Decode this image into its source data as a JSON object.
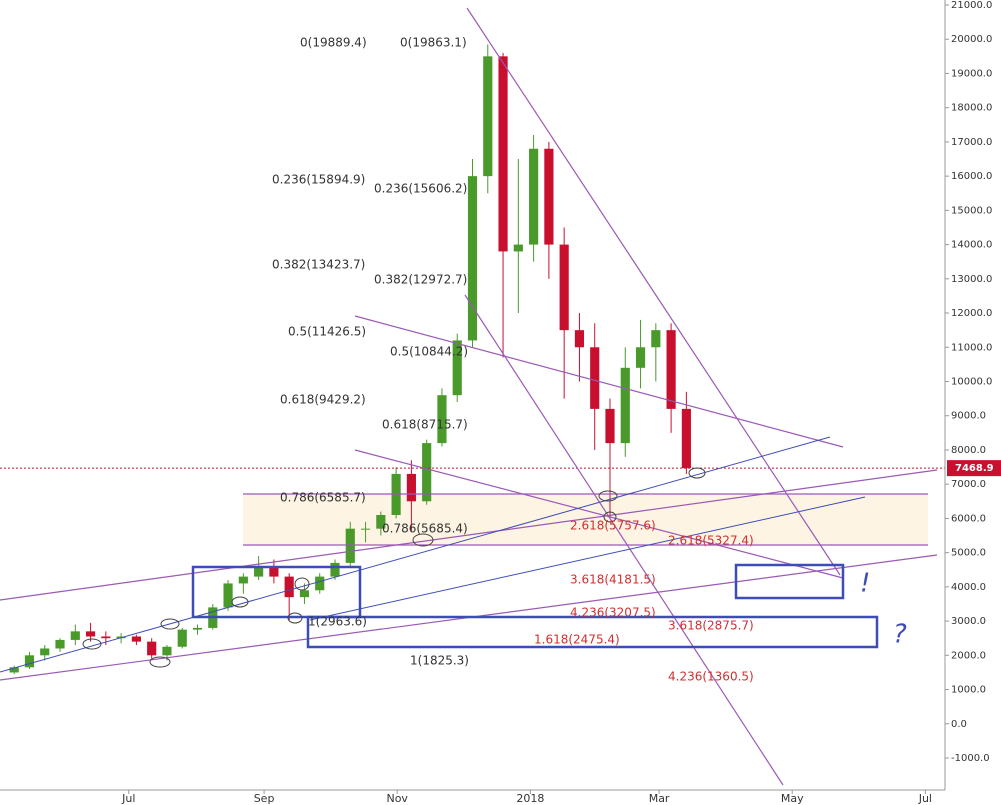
{
  "chart_data": {
    "type": "candlestick",
    "x": [
      -56,
      -49,
      -42,
      -35,
      -28,
      -21,
      -14,
      -7,
      0,
      7,
      14,
      21,
      28,
      35,
      42,
      49,
      56,
      63,
      70,
      77,
      84,
      91,
      98,
      105,
      112,
      119,
      126,
      133,
      140,
      147,
      154,
      161,
      168,
      175,
      182,
      189,
      196,
      203,
      210,
      217,
      224,
      231,
      238,
      245,
      252
    ],
    "open": [
      1500,
      1650,
      2000,
      2200,
      2450,
      2700,
      2550,
      2500,
      2550,
      2400,
      2000,
      2250,
      2750,
      2800,
      3400,
      4100,
      4300,
      4600,
      4300,
      3700,
      3900,
      4300,
      4700,
      5700,
      5700,
      6100,
      7300,
      6500,
      8200,
      9600,
      11200,
      16000,
      19500,
      13800,
      14000,
      16800,
      14000,
      11500,
      11000,
      9200,
      8200,
      10400,
      11000,
      11500,
      9200
    ],
    "high": [
      1700,
      2100,
      2300,
      2500,
      2900,
      2950,
      2700,
      2650,
      2600,
      2500,
      2300,
      2800,
      2900,
      3500,
      4200,
      4400,
      4900,
      4800,
      4400,
      4100,
      4400,
      4800,
      5900,
      5900,
      6200,
      7500,
      7700,
      8300,
      9800,
      11400,
      16500,
      19850,
      19600,
      16500,
      17200,
      17000,
      14500,
      12000,
      11700,
      9500,
      11000,
      11800,
      11700,
      11700,
      9700
    ],
    "low": [
      1450,
      1600,
      1850,
      2100,
      2300,
      2400,
      2300,
      2350,
      2300,
      1900,
      1850,
      2200,
      2600,
      2750,
      3300,
      3800,
      4200,
      4100,
      3000,
      3500,
      3800,
      4200,
      4600,
      5300,
      5500,
      6000,
      5600,
      6400,
      8100,
      9400,
      11000,
      15500,
      10700,
      12000,
      13500,
      13000,
      9500,
      10000,
      8000,
      6000,
      7800,
      9800,
      10000,
      8500,
      7300
    ],
    "close": [
      1650,
      2000,
      2200,
      2450,
      2700,
      2550,
      2500,
      2550,
      2400,
      2000,
      2250,
      2750,
      2800,
      3400,
      4100,
      4300,
      4600,
      4300,
      3700,
      3900,
      4300,
      4700,
      5700,
      5700,
      6100,
      7300,
      6500,
      8200,
      9600,
      11200,
      16000,
      19500,
      13800,
      14000,
      16800,
      14000,
      11500,
      11000,
      9200,
      8200,
      10400,
      11000,
      11500,
      9200,
      7468.9
    ],
    "up_color": "#4a9a2b",
    "down_color": "#c8102e",
    "xlim": [
      -59,
      374
    ],
    "xticks": [
      {
        "value": 0,
        "label": "Jul"
      },
      {
        "value": 62,
        "label": "Sep"
      },
      {
        "value": 123,
        "label": "Nov"
      },
      {
        "value": 184,
        "label": "2018"
      },
      {
        "value": 243,
        "label": "Mar"
      },
      {
        "value": 304,
        "label": "May"
      },
      {
        "value": 365,
        "label": "Jul"
      }
    ],
    "ylim": [
      -1000,
      21000
    ],
    "yticks": [
      {
        "value": -1000,
        "label": "-1000.0"
      },
      {
        "value": 0,
        "label": "0.0"
      },
      {
        "value": 1000,
        "label": "1000.0"
      },
      {
        "value": 2000,
        "label": "2000.0"
      },
      {
        "value": 3000,
        "label": "3000.0"
      },
      {
        "value": 4000,
        "label": "4000.0"
      },
      {
        "value": 5000,
        "label": "5000.0"
      },
      {
        "value": 6000,
        "label": "6000.0"
      },
      {
        "value": 7000,
        "label": "7000.0"
      },
      {
        "value": 8000,
        "label": "8000.0"
      },
      {
        "value": 9000,
        "label": "9000.0"
      },
      {
        "value": 10000,
        "label": "10000.0"
      },
      {
        "value": 11000,
        "label": "11000.0"
      },
      {
        "value": 12000,
        "label": "12000.0"
      },
      {
        "value": 13000,
        "label": "13000.0"
      },
      {
        "value": 14000,
        "label": "14000.0"
      },
      {
        "value": 15000,
        "label": "15000.0"
      },
      {
        "value": 16000,
        "label": "16000.0"
      },
      {
        "value": 17000,
        "label": "17000.0"
      },
      {
        "value": 18000,
        "label": "18000.0"
      },
      {
        "value": 19000,
        "label": "19000.0"
      },
      {
        "value": 20000,
        "label": "20000.0"
      },
      {
        "value": 21000,
        "label": "21000.0"
      }
    ],
    "grid": true,
    "annotations": [
      "0(19889.4)",
      "0(19863.1)",
      "0.236(15894.9)",
      "0.236(15606.2)",
      "0.382(13423.7)",
      "0.382(12972.7)",
      "0.5(11426.5)",
      "0.5(10844.2)",
      "0.618(9429.2)",
      "0.618(8715.7)",
      "0.786(6585.7)",
      "0.786(5685.4)",
      "1(2963.6)",
      "1(1825.3)"
    ],
    "red_annotations": [
      "2.618(5757.6)",
      "2.618(5327.4)",
      "3.618(4181.5)",
      "4.236(3207.5)",
      "3.618(2875.7)",
      "1.618(2475.4)",
      "4.236(1360.5)"
    ],
    "marks": [
      "!",
      "?"
    ]
  }
}
